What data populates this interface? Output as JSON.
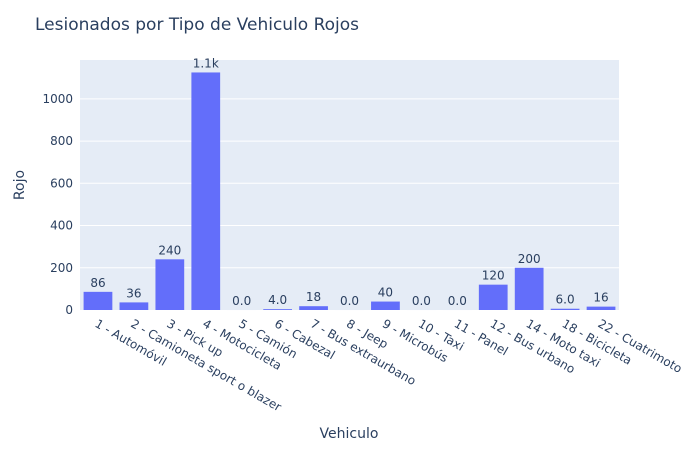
{
  "chart_data": {
    "type": "bar",
    "title": "Lesionados por Tipo de Vehiculo Rojos",
    "xlabel": "Vehiculo",
    "ylabel": "Rojo",
    "categories": [
      "1 - Automóvil",
      "2 - Camioneta sport o blazer",
      "3 - Pick up",
      "4 - Motocicleta",
      "5 - Camión",
      "6 - Cabezal",
      "7 - Bus extraurbano",
      "8 - Jeep",
      "9 - Microbús",
      "10 - Taxi",
      "11 - Panel",
      "12 - Bus urbano",
      "14 - Moto taxi",
      "18 - Bicicleta",
      "22 - Cuatrimoto"
    ],
    "values": [
      86,
      36,
      240,
      1125,
      0,
      4,
      18,
      0,
      40,
      0,
      0,
      120,
      200,
      6,
      16
    ],
    "value_labels": [
      "86",
      "36",
      "240",
      "1.1k",
      "0.0",
      "4.0",
      "18",
      "0.0",
      "40",
      "0.0",
      "0.0",
      "120",
      "200",
      "6.0",
      "16"
    ],
    "ylim": [
      0,
      1184
    ],
    "yticks": [
      0,
      200,
      400,
      600,
      800,
      1000
    ],
    "grid": true,
    "bar_color": "#636efa",
    "plot_bg": "#e5ecf6"
  }
}
